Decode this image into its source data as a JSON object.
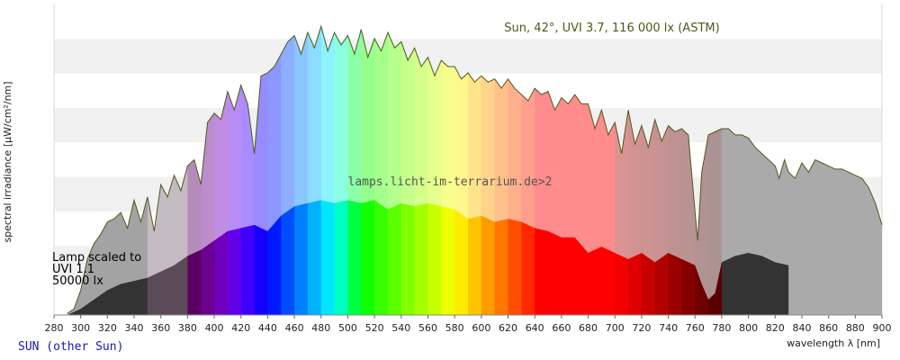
{
  "chart_data": {
    "type": "area",
    "xlabel": "wavelength λ [nm]",
    "ylabel": "spectral irradiance [µW/cm²/nm]",
    "xlim": [
      280,
      900
    ],
    "ylim": [
      0,
      100
    ],
    "x_ticks": [
      280,
      300,
      320,
      340,
      360,
      380,
      400,
      420,
      440,
      460,
      480,
      500,
      520,
      540,
      560,
      580,
      600,
      620,
      640,
      660,
      680,
      700,
      720,
      740,
      760,
      780,
      800,
      820,
      840,
      860,
      880,
      900
    ],
    "grid": "horizontal bands",
    "series": [
      {
        "name": "Sun, 42°, UVI 3.7, 116 000 lx (ASTM)",
        "x": [
          290,
          295,
          300,
          305,
          310,
          315,
          320,
          325,
          330,
          335,
          340,
          345,
          350,
          355,
          360,
          365,
          370,
          375,
          380,
          385,
          390,
          395,
          400,
          405,
          410,
          415,
          420,
          425,
          430,
          435,
          440,
          445,
          450,
          455,
          460,
          465,
          470,
          475,
          480,
          485,
          490,
          495,
          500,
          505,
          510,
          515,
          520,
          525,
          530,
          535,
          540,
          545,
          550,
          555,
          560,
          565,
          570,
          575,
          580,
          585,
          590,
          595,
          600,
          605,
          610,
          615,
          620,
          625,
          630,
          635,
          640,
          645,
          650,
          655,
          660,
          665,
          670,
          675,
          680,
          685,
          690,
          695,
          700,
          705,
          710,
          715,
          720,
          725,
          730,
          735,
          740,
          745,
          750,
          755,
          760,
          762,
          765,
          770,
          775,
          780,
          785,
          790,
          795,
          800,
          805,
          810,
          815,
          820,
          823,
          827,
          830,
          835,
          840,
          845,
          850,
          855,
          860,
          865,
          870,
          875,
          880,
          885,
          890,
          895,
          900
        ],
        "values": [
          0.5,
          2,
          8,
          18,
          23,
          26,
          30,
          31,
          33,
          28,
          37,
          30,
          38,
          27,
          42,
          38,
          45,
          40,
          48,
          50,
          42,
          62,
          65,
          63,
          72,
          66,
          74,
          68,
          52,
          77,
          78,
          80,
          84,
          88,
          90,
          84,
          91,
          86,
          93,
          85,
          91,
          87,
          90,
          84,
          92,
          83,
          89,
          85,
          91,
          86,
          88,
          82,
          86,
          80,
          83,
          77,
          82,
          80,
          80,
          76,
          78,
          75,
          77,
          75,
          76,
          73,
          76,
          73,
          71,
          69,
          73,
          71,
          72,
          66,
          70,
          68,
          71,
          68,
          68,
          60,
          66,
          58,
          62,
          52,
          66,
          55,
          61,
          54,
          63,
          56,
          61,
          59,
          60,
          58,
          33,
          24,
          46,
          58,
          59,
          60,
          60,
          58,
          58,
          57,
          54,
          52,
          50,
          48,
          44,
          50,
          46,
          44,
          49,
          46,
          50,
          49,
          48,
          47,
          47,
          46,
          45,
          44,
          41,
          36,
          29
        ]
      },
      {
        "name": "lamps.licht-im-terrarium.de>2",
        "x": [
          290,
          300,
          310,
          320,
          330,
          340,
          350,
          360,
          370,
          380,
          390,
          400,
          410,
          420,
          430,
          440,
          450,
          460,
          470,
          480,
          490,
          500,
          510,
          520,
          530,
          540,
          550,
          560,
          570,
          580,
          590,
          600,
          610,
          620,
          630,
          640,
          650,
          660,
          670,
          680,
          690,
          700,
          710,
          720,
          730,
          740,
          750,
          760,
          765,
          770,
          775,
          780,
          790,
          800,
          810,
          820,
          830
        ],
        "values": [
          0,
          2,
          5,
          8,
          10,
          11,
          12,
          14,
          16,
          19,
          21,
          24,
          27,
          28,
          29,
          27,
          32,
          35,
          36,
          37,
          36,
          37,
          36,
          37,
          34,
          36,
          35,
          36,
          35,
          34,
          31,
          32,
          30,
          31,
          30,
          28,
          27,
          25,
          25,
          20,
          22,
          20,
          18,
          20,
          17,
          20,
          18,
          16,
          10,
          5,
          7,
          17,
          19,
          20,
          19,
          17,
          16
        ]
      }
    ],
    "annotations": {
      "sun_label": "Sun, 42°, UVI 3.7, 116 000 lx (ASTM)",
      "lamp_label": "lamps.licht-im-terrarium.de>2",
      "lamp_note_lines": [
        "Lamp scaled to",
        "UVI 1.1",
        "50000 lx"
      ]
    }
  },
  "footer": {
    "left_label": "SUN (other Sun)"
  },
  "colors": {
    "sun_outline": "#4d5a1a",
    "lamp_gray": "#333333",
    "uv_overlay": "#9e9e9e",
    "band_light": "#f1f1f1"
  }
}
